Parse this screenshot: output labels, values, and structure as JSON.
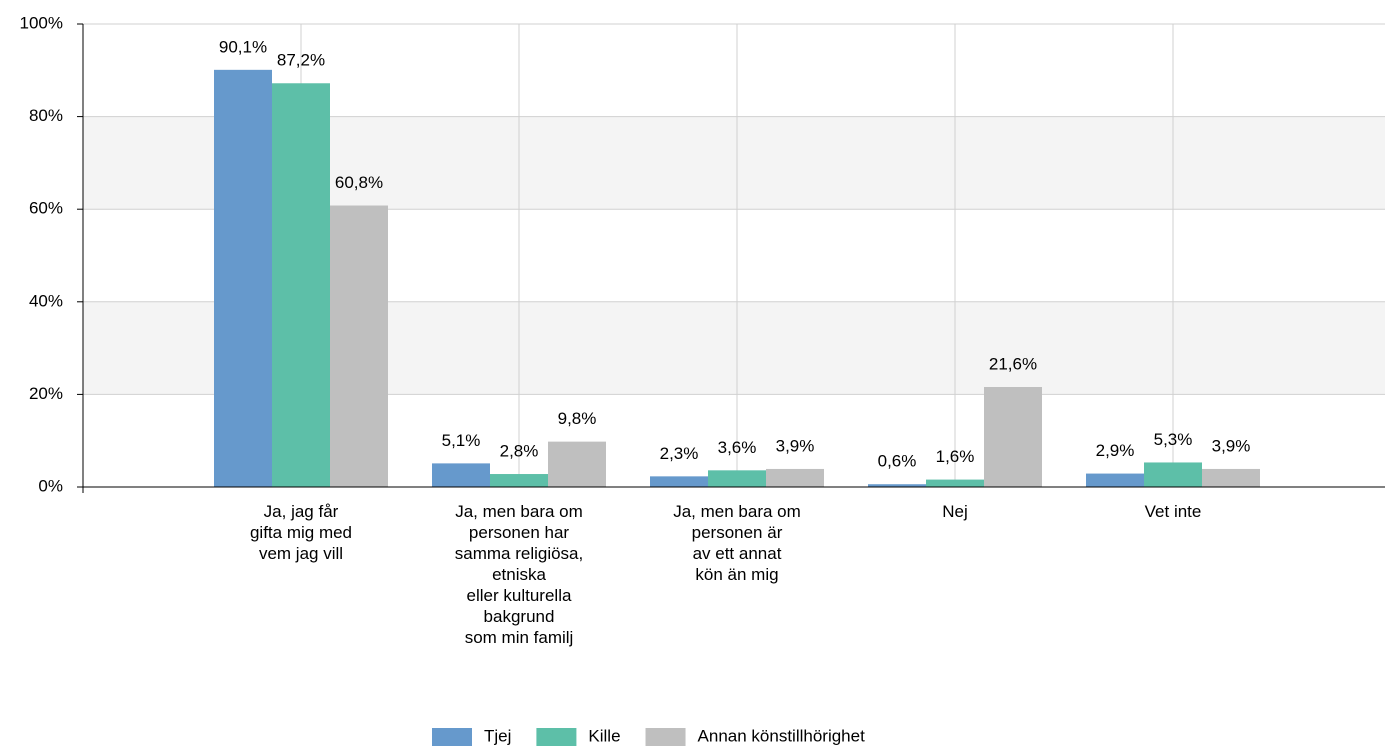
{
  "chart_data": {
    "type": "bar",
    "categories": [
      "Ja, jag får\ngifta mig med\nvem jag vill",
      "Ja, men bara om\npersonen har\nsamma religiösa,\netniska\neller kulturella\nbakgrund\nsom min familj",
      "Ja, men bara om\npersonen är\nav ett annat\nkön än mig",
      "Nej",
      "Vet inte"
    ],
    "series": [
      {
        "name": "Tjej",
        "color": "#6699cc",
        "values": [
          90.1,
          5.1,
          2.3,
          0.6,
          2.9
        ],
        "value_labels": [
          "90,1%",
          "5,1%",
          "2,3%",
          "0,6%",
          "2,9%"
        ]
      },
      {
        "name": "Kille",
        "color": "#5dbfa8",
        "values": [
          87.2,
          2.8,
          3.6,
          1.6,
          5.3
        ],
        "value_labels": [
          "87,2%",
          "2,8%",
          "3,6%",
          "1,6%",
          "5,3%"
        ]
      },
      {
        "name": "Annan könstillhörighet",
        "color": "#bfbfbf",
        "values": [
          60.8,
          9.8,
          3.9,
          21.6,
          3.9
        ],
        "value_labels": [
          "60,8%",
          "9,8%",
          "3,9%",
          "21,6%",
          "3,9%"
        ]
      }
    ],
    "ylim": [
      0,
      100
    ],
    "yticks": [
      {
        "value": 0,
        "label": "0%"
      },
      {
        "value": 20,
        "label": "20%"
      },
      {
        "value": 40,
        "label": "40%"
      },
      {
        "value": 60,
        "label": "60%"
      },
      {
        "value": 80,
        "label": "80%"
      },
      {
        "value": 100,
        "label": "100%"
      }
    ],
    "grid": true,
    "legend": "bottom"
  }
}
